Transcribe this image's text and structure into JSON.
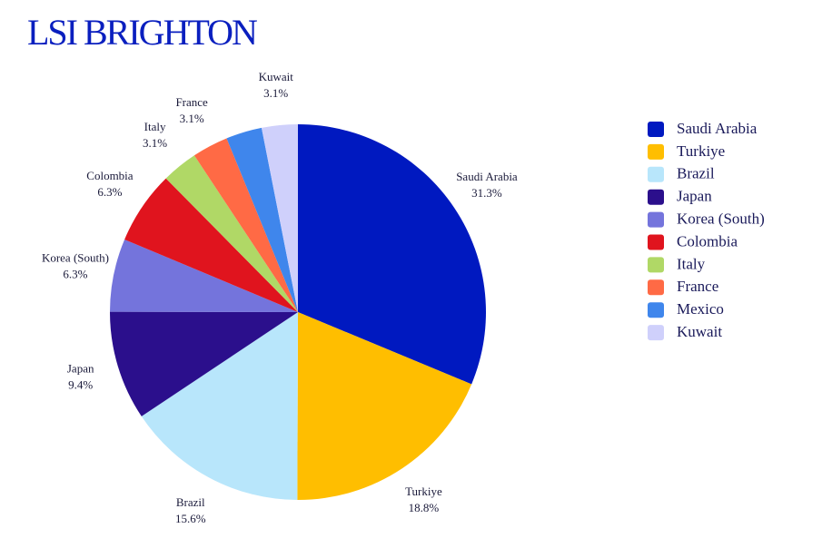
{
  "chart_data": {
    "type": "pie",
    "title": "LSI BRIGHTON",
    "categories": [
      "Saudi Arabia",
      "Turkiye",
      "Brazil",
      "Japan",
      "Korea (South)",
      "Colombia",
      "Italy",
      "France",
      "Mexico",
      "Kuwait"
    ],
    "values": [
      31.3,
      18.8,
      15.6,
      9.4,
      6.3,
      6.3,
      3.1,
      3.1,
      3.1,
      3.1
    ],
    "value_labels": [
      "31.3%",
      "18.8%",
      "15.6%",
      "9.4%",
      "6.3%",
      "6.3%",
      "3.1%",
      "3.1%",
      null,
      "3.1%"
    ],
    "colors": [
      "#0019c0",
      "#ffbe00",
      "#b8e6fb",
      "#2b0f8c",
      "#7474dc",
      "#e0141e",
      "#b0d866",
      "#ff6a45",
      "#3f86ec",
      "#cfd0fb"
    ],
    "legend": "right"
  }
}
